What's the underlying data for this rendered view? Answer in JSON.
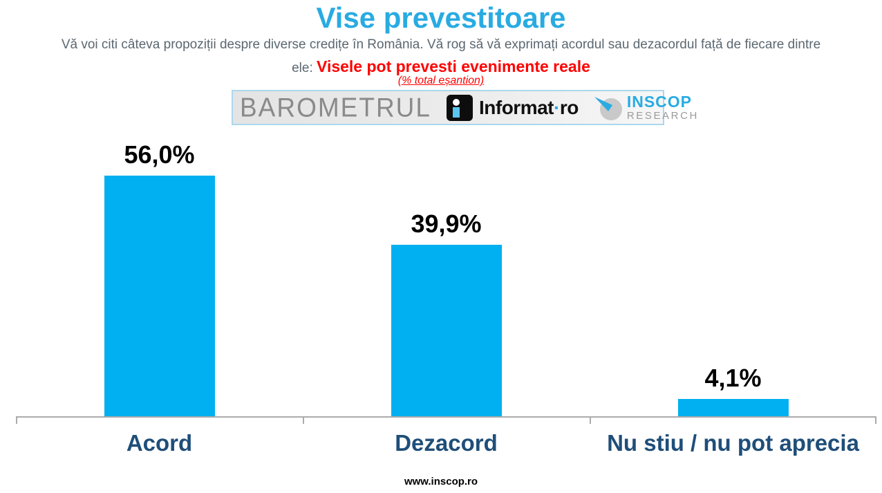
{
  "page": {
    "title": "Vise prevestitoare",
    "subtitle_line1": "Vă voi citi câteva propoziții despre diverse credițe în România. Vă rog să vă exprimați acordul sau dezacordul față de fiecare dintre",
    "subtitle_prefix": "ele: ",
    "subtitle_highlight": "Visele pot prevesti evenimente reale",
    "sample_note": "(% total eșantion)",
    "footer_url": "www.inscop.ro"
  },
  "banner": {
    "barometrul_label": "BAROMETRUL",
    "informat_name": "Informat",
    "informat_dot": "·",
    "informat_tld": "ro",
    "inscop_name": "INSCOP",
    "inscop_sub": "RESEARCH"
  },
  "colors": {
    "title_blue": "#29ABE2",
    "bar_cyan": "#00B0F0",
    "category_navy": "#1F4E79",
    "highlight_red": "#FF0000",
    "subtitle_gray": "#5B6770",
    "axis_gray": "#ABABAB"
  },
  "chart_data": {
    "type": "bar",
    "title": "Vise prevestitoare",
    "subtitle": "Visele pot prevesti evenimente reale",
    "unit_note": "% total eșantion",
    "categories": [
      "Acord",
      "Dezacord",
      "Nu stiu / nu pot aprecia"
    ],
    "values": [
      56.0,
      39.9,
      4.1
    ],
    "value_labels": [
      "56,0%",
      "39,9%",
      "4,1%"
    ],
    "xlabel": "",
    "ylabel": "% total eșantion",
    "ylim": [
      0,
      60
    ],
    "grid": false,
    "legend": false,
    "bar_color": "#00B0F0"
  }
}
